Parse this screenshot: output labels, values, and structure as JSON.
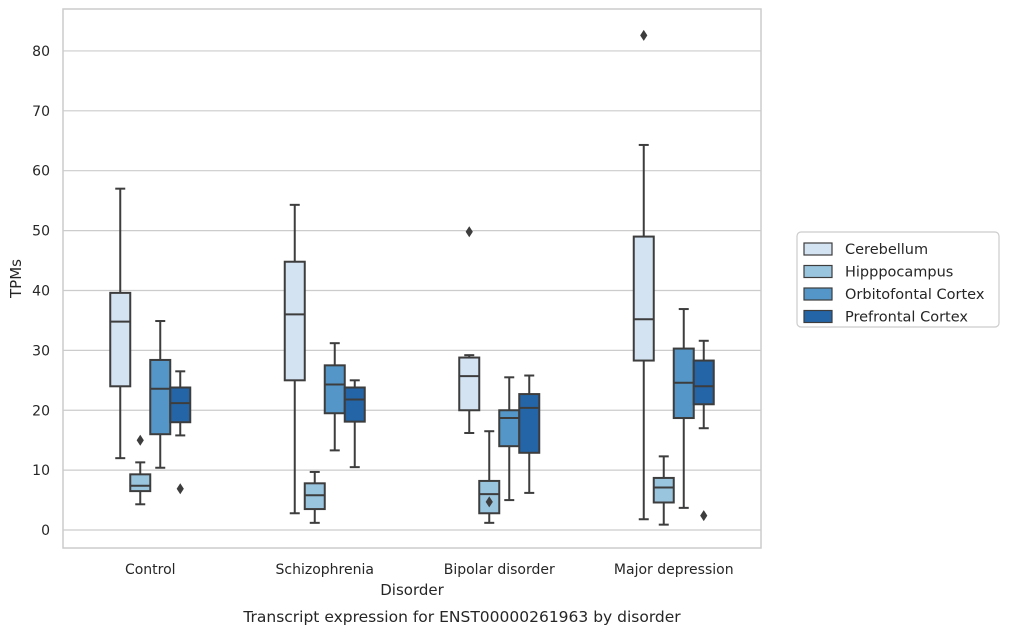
{
  "chart_data": {
    "type": "box",
    "xlabel": "Disorder",
    "ylabel": "TPMs",
    "caption": "Transcript expression for ENST00000261963 by disorder",
    "categories": [
      "Control",
      "Schizophrenia",
      "Bipolar disorder",
      "Major depression"
    ],
    "yticks": [
      0,
      10,
      20,
      30,
      40,
      50,
      60,
      70,
      80
    ],
    "ylim": [
      -3,
      87
    ],
    "grid": "horizontal",
    "legend_position": "right",
    "series": [
      {
        "name": "Cerebellum",
        "color": "#d4e3f2",
        "boxes": [
          {
            "whislo": 12.0,
            "q1": 24.0,
            "med": 34.8,
            "q3": 39.6,
            "whishi": 57.0,
            "fliers": []
          },
          {
            "whislo": 2.8,
            "q1": 25.0,
            "med": 36.0,
            "q3": 44.8,
            "whishi": 54.3,
            "fliers": []
          },
          {
            "whislo": 16.2,
            "q1": 20.0,
            "med": 25.7,
            "q3": 28.8,
            "whishi": 29.2,
            "fliers": [
              49.8
            ]
          },
          {
            "whislo": 1.8,
            "q1": 28.3,
            "med": 35.2,
            "q3": 49.0,
            "whishi": 64.3,
            "fliers": [
              82.6
            ]
          }
        ]
      },
      {
        "name": "Hipppocampus",
        "color": "#9ac5df",
        "boxes": [
          {
            "whislo": 4.3,
            "q1": 6.5,
            "med": 7.4,
            "q3": 9.3,
            "whishi": 11.3,
            "fliers": [
              15.0
            ]
          },
          {
            "whislo": 1.2,
            "q1": 3.5,
            "med": 5.8,
            "q3": 7.8,
            "whishi": 9.7,
            "fliers": []
          },
          {
            "whislo": 1.2,
            "q1": 2.8,
            "med": 6.0,
            "q3": 8.2,
            "whishi": 16.5,
            "fliers": [
              4.7
            ]
          },
          {
            "whislo": 0.9,
            "q1": 4.6,
            "med": 7.1,
            "q3": 8.7,
            "whishi": 12.3,
            "fliers": []
          }
        ]
      },
      {
        "name": "Orbitofontal Cortex",
        "color": "#5496c8",
        "boxes": [
          {
            "whislo": 10.4,
            "q1": 16.0,
            "med": 23.6,
            "q3": 28.4,
            "whishi": 34.9,
            "fliers": []
          },
          {
            "whislo": 13.3,
            "q1": 19.5,
            "med": 24.3,
            "q3": 27.5,
            "whishi": 31.2,
            "fliers": []
          },
          {
            "whislo": 5.0,
            "q1": 14.0,
            "med": 18.7,
            "q3": 20.0,
            "whishi": 25.5,
            "fliers": []
          },
          {
            "whislo": 3.7,
            "q1": 18.7,
            "med": 24.6,
            "q3": 30.3,
            "whishi": 36.9,
            "fliers": []
          }
        ]
      },
      {
        "name": "Prefrontal Cortex",
        "color": "#2465a8",
        "boxes": [
          {
            "whislo": 15.8,
            "q1": 18.0,
            "med": 21.2,
            "q3": 23.8,
            "whishi": 26.5,
            "fliers": [
              6.9
            ]
          },
          {
            "whislo": 10.5,
            "q1": 18.1,
            "med": 21.8,
            "q3": 23.8,
            "whishi": 25.0,
            "fliers": []
          },
          {
            "whislo": 6.2,
            "q1": 12.9,
            "med": 20.4,
            "q3": 22.7,
            "whishi": 25.8,
            "fliers": []
          },
          {
            "whislo": 17.0,
            "q1": 21.0,
            "med": 24.0,
            "q3": 28.3,
            "whishi": 31.6,
            "fliers": [
              2.4
            ]
          }
        ]
      }
    ]
  }
}
